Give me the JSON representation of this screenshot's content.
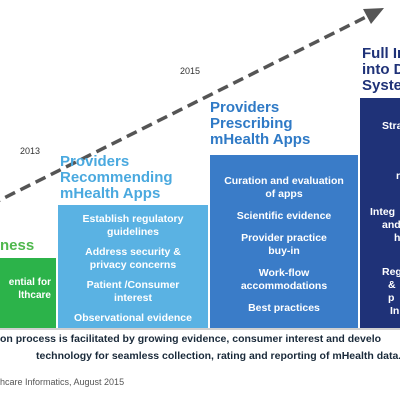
{
  "years": [
    "2013",
    "2015"
  ],
  "stages": [
    {
      "title_lines": [
        "ness"
      ],
      "items": [
        [
          "ential for",
          "lthcare"
        ]
      ]
    },
    {
      "title_lines": [
        "Providers",
        "Recommending",
        "mHealth Apps"
      ],
      "items": [
        [
          "Establish regulatory",
          "guidelines"
        ],
        [
          "Address security &",
          "privacy  concerns"
        ],
        [
          "Patient /Consumer",
          "interest"
        ],
        [
          "Observational evidence"
        ]
      ]
    },
    {
      "title_lines": [
        "Providers",
        "Prescribing",
        "mHealth Apps"
      ],
      "items": [
        [
          "Curation and evaluation",
          "of apps"
        ],
        [
          "Scientific evidence"
        ],
        [
          "Provider  practice",
          "buy-in"
        ],
        [
          "Work-flow",
          "accommodations"
        ],
        [
          "Best practices"
        ]
      ]
    },
    {
      "title_lines": [
        "Full In",
        "into D",
        "Syste"
      ],
      "items": [
        [
          "Stra"
        ],
        [
          "r"
        ],
        [
          "Integ",
          "and",
          "he"
        ],
        [
          "Reg",
          "&  p"
        ],
        [
          "In"
        ]
      ]
    }
  ],
  "footer": {
    "line1": "on process is facilitated by growing evidence, consumer interest and develo",
    "line2": "technology for seamless collection, rating and reporting of mHealth data."
  },
  "source": "hcare Informatics, August 2015",
  "colors": {
    "stage1": "#2cb34a",
    "stage2": "#5ab2e3",
    "stage3": "#3a7cc8",
    "stage4": "#1f3278",
    "arrow": "#555555"
  }
}
